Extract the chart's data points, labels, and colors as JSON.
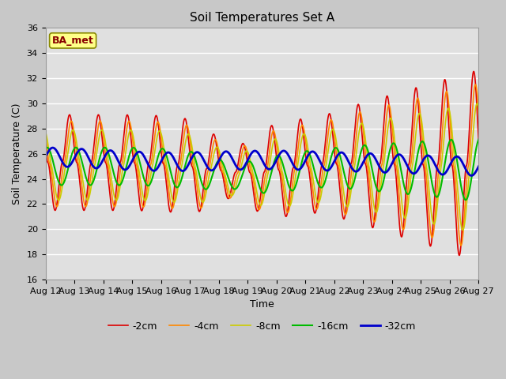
{
  "title": "Soil Temperatures Set A",
  "xlabel": "Time",
  "ylabel": "Soil Temperature (C)",
  "ylim": [
    16,
    36
  ],
  "yticks": [
    16,
    18,
    20,
    22,
    24,
    26,
    28,
    30,
    32,
    34,
    36
  ],
  "x_labels": [
    "Aug 12",
    "Aug 13",
    "Aug 14",
    "Aug 15",
    "Aug 16",
    "Aug 17",
    "Aug 18",
    "Aug 19",
    "Aug 20",
    "Aug 21",
    "Aug 22",
    "Aug 23",
    "Aug 24",
    "Aug 25",
    "Aug 26",
    "Aug 27"
  ],
  "legend_labels": [
    "-2cm",
    "-4cm",
    "-8cm",
    "-16cm",
    "-32cm"
  ],
  "line_colors": [
    "#dd0000",
    "#ff8800",
    "#cccc00",
    "#00bb00",
    "#0000cc"
  ],
  "line_widths": [
    1.2,
    1.2,
    1.2,
    1.5,
    2.0
  ],
  "fig_bg_color": "#c8c8c8",
  "plot_bg_color": "#e0e0e0",
  "annotation_text": "BA_met",
  "annotation_bg": "#ffff88",
  "annotation_border": "#888800",
  "annotation_text_color": "#880000",
  "grid_color": "#ffffff",
  "n_days": 16,
  "points_per_day": 144
}
